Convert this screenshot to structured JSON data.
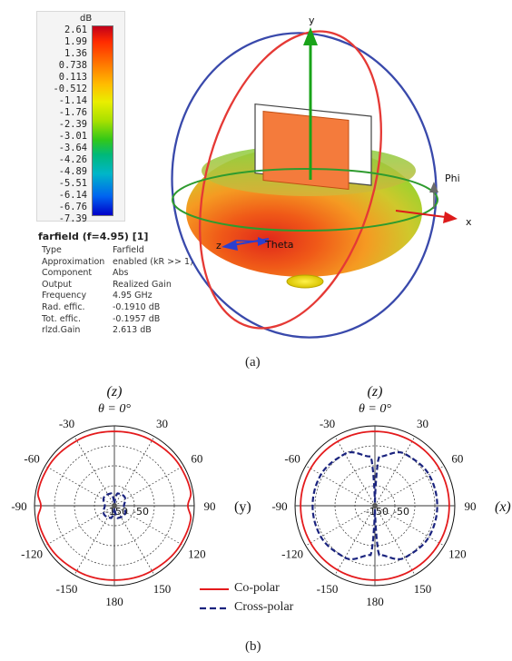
{
  "colorbar": {
    "unit": "dB",
    "ticks": [
      "2.61",
      "1.99",
      "1.36",
      "0.738",
      "0.113",
      "-0.512",
      "-1.14",
      "-1.76",
      "-2.39",
      "-3.01",
      "-3.64",
      "-4.26",
      "-4.89",
      "-5.51",
      "-6.14",
      "-6.76",
      "-7.39"
    ]
  },
  "info": {
    "title": "farfield (f=4.95) [1]",
    "rows": [
      {
        "key": "Type",
        "value": "Farfield"
      },
      {
        "key": "Approximation",
        "value": "enabled (kR >> 1)"
      },
      {
        "key": "Component",
        "value": "Abs"
      },
      {
        "key": "Output",
        "value": "Realized Gain"
      },
      {
        "key": "Frequency",
        "value": "4.95 GHz"
      },
      {
        "key": "Rad. effic.",
        "value": "-0.1910 dB"
      },
      {
        "key": "Tot. effic.",
        "value": "-0.1957 dB"
      },
      {
        "key": "rlzd.Gain",
        "value": "2.613 dB"
      }
    ]
  },
  "pattern3d": {
    "axis_y": "y",
    "axis_x": "x",
    "axis_z": "z",
    "phi_label": "Phi",
    "theta_label": "Theta"
  },
  "captions": {
    "a": "(a)",
    "b": "(b)"
  },
  "legend": {
    "co": "Co-polar",
    "cross": "Cross-polar"
  },
  "colors": {
    "co": "#e41a1c",
    "cross": "#1a237e",
    "ring_red": "#e53935",
    "ring_blue": "#3949ab",
    "ring_green": "#2e9b2e"
  },
  "chart_data": [
    {
      "type": "line",
      "coordinate_system": "polar",
      "top_label": "(z)",
      "theta_label": "θ = 0°",
      "side_label": "(y)",
      "angle_labels": [
        "30",
        "-30",
        "60",
        "-60",
        "90",
        "-90",
        "120",
        "-120",
        "150",
        "-150",
        "180"
      ],
      "radial_labels": [
        "-50",
        "-150"
      ],
      "series": [
        {
          "name": "Co-polar",
          "theta_deg": [
            0,
            30,
            60,
            80,
            90,
            100,
            120,
            150,
            180
          ],
          "level": [
            0.93,
            0.94,
            0.96,
            0.97,
            0.92,
            0.97,
            0.96,
            0.94,
            0.93
          ]
        },
        {
          "name": "Cross-polar",
          "theta_deg": [
            0,
            15,
            45,
            90,
            135,
            165,
            180
          ],
          "level": [
            0.02,
            0.16,
            0.17,
            0.12,
            0.17,
            0.16,
            0.02
          ]
        }
      ]
    },
    {
      "type": "line",
      "coordinate_system": "polar",
      "top_label": "(z)",
      "theta_label": "θ = 0°",
      "side_label": "(x)",
      "angle_labels": [
        "30",
        "-30",
        "60",
        "-60",
        "90",
        "-90",
        "120",
        "-120",
        "150",
        "-150",
        "180"
      ],
      "radial_labels": [
        "-50",
        "-150"
      ],
      "series": [
        {
          "name": "Co-polar",
          "theta_deg": [
            0,
            30,
            60,
            90,
            120,
            150,
            180
          ],
          "level": [
            0.93,
            0.93,
            0.93,
            0.93,
            0.93,
            0.93,
            0.93
          ]
        },
        {
          "name": "Cross-polar",
          "theta_deg": [
            0,
            5,
            30,
            60,
            90,
            120,
            150,
            175,
            180
          ],
          "level": [
            0.04,
            0.62,
            0.75,
            0.78,
            0.78,
            0.78,
            0.75,
            0.62,
            0.04
          ]
        }
      ]
    }
  ]
}
